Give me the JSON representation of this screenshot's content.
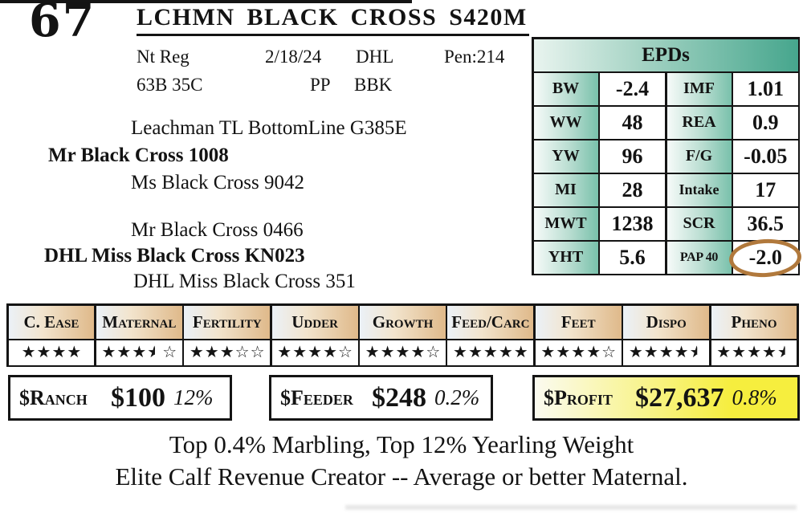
{
  "colors": {
    "epd_green": "#46a68d",
    "trait_tan": "#dfb98a",
    "profit_yellow": "#f6ee3e",
    "pap_circle_brown": "#b1793c"
  },
  "icons": {
    "full_star": "★",
    "empty_star": "☆",
    "half_star": "left-half ★",
    "pap_circle": "hand-drawn brown ellipse highlight"
  },
  "header": {
    "lot_number": "67",
    "animal_name": "LCHMN BLACK CROSS S420M",
    "reg_status": "Nt Reg",
    "birth_date": "2/18/24",
    "herd_code": "DHL",
    "pen": "Pen:214",
    "tattoo": "63B 35C",
    "polled_status": "PP",
    "breeding_code": "BBK"
  },
  "pedigree": {
    "sire_line": {
      "grandsire": "Leachman TL BottomLine G385E",
      "sire": "Mr Black Cross 1008",
      "granddam": "Ms Black Cross 9042"
    },
    "dam_line": {
      "grandsire": "Mr Black Cross 0466",
      "dam": "DHL Miss Black Cross KN023",
      "granddam": "DHL Miss Black Cross 351"
    }
  },
  "epds": {
    "title": "EPDs",
    "rows": [
      {
        "l1": "BW",
        "v1": "-2.4",
        "l2": "IMF",
        "v2": "1.01"
      },
      {
        "l1": "WW",
        "v1": "48",
        "l2": "REA",
        "v2": "0.9"
      },
      {
        "l1": "YW",
        "v1": "96",
        "l2": "F/G",
        "v2": "-0.05"
      },
      {
        "l1": "MI",
        "v1": "28",
        "l2": "Intake",
        "v2": "17"
      },
      {
        "l1": "MWT",
        "v1": "1238",
        "l2": "SCR",
        "v2": "36.5"
      },
      {
        "l1": "YHT",
        "v1": "5.6",
        "l2": "PAP 40",
        "v2": "-2.0"
      }
    ],
    "circled_value": "-2.0"
  },
  "traits": {
    "columns": [
      {
        "label": "C. Ease",
        "stars": [
          "full",
          "full",
          "full",
          "full"
        ]
      },
      {
        "label": "Maternal",
        "stars": [
          "full",
          "full",
          "full",
          "half",
          "empty"
        ]
      },
      {
        "label": "Fertility",
        "stars": [
          "full",
          "full",
          "full",
          "empty",
          "empty"
        ]
      },
      {
        "label": "Udder",
        "stars": [
          "full",
          "full",
          "full",
          "full",
          "empty"
        ]
      },
      {
        "label": "Growth",
        "stars": [
          "full",
          "full",
          "full",
          "full",
          "empty"
        ]
      },
      {
        "label": "Feed/Carc",
        "stars": [
          "full",
          "full",
          "full",
          "full",
          "full"
        ]
      },
      {
        "label": "Feet",
        "stars": [
          "full",
          "full",
          "full",
          "full",
          "empty"
        ]
      },
      {
        "label": "Dispo",
        "stars": [
          "full",
          "full",
          "full",
          "full",
          "half"
        ]
      },
      {
        "label": "Pheno",
        "stars": [
          "full",
          "full",
          "full",
          "full",
          "half"
        ]
      }
    ]
  },
  "profit_boxes": [
    {
      "label": "$Ranch",
      "value": "$100",
      "percentile": "12%"
    },
    {
      "label": "$Feeder",
      "value": "$248",
      "percentile": "0.2%"
    },
    {
      "label": "$Profit",
      "value": "$27,637",
      "percentile": "0.8%"
    }
  ],
  "footnotes": [
    "Top 0.4% Marbling, Top 12% Yearling Weight",
    "Elite Calf Revenue Creator -- Average or better Maternal."
  ]
}
